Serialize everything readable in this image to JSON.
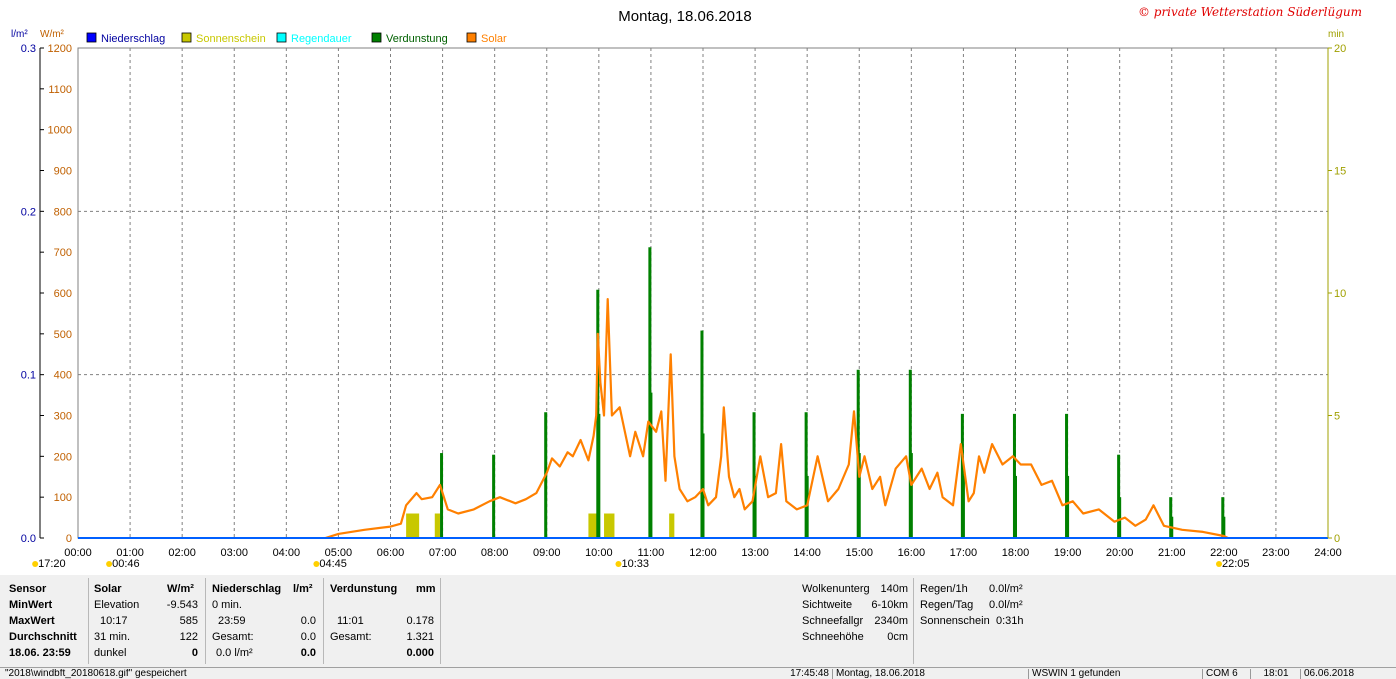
{
  "header": {
    "title": "Montag, 18.06.2018",
    "watermark": "© private Wetterstation Süderlügum",
    "left_unit_1": "l/m²",
    "left_unit_2": "W/m²",
    "right_unit": "min"
  },
  "legend": [
    {
      "label": "Niederschlag",
      "color": "#0000ff"
    },
    {
      "label": "Sonnenschein",
      "color": "#c8c800"
    },
    {
      "label": "Regendauer",
      "color": "#00ffff"
    },
    {
      "label": "Verdunstung",
      "color": "#008000"
    },
    {
      "label": "Solar",
      "color": "#ff8000"
    }
  ],
  "colors": {
    "solar": "#ff8000",
    "evaporation": "#008000",
    "sunshine": "#c8c800",
    "precip": "#0060ff",
    "grid": "#808080",
    "axis_left": "#0000a0",
    "axis_solar": "#c06000",
    "axis_right": "#a0a000"
  },
  "chart_data": {
    "type": "bar+line",
    "x_domain_hours": [
      0,
      24
    ],
    "x_ticks": [
      "00:00",
      "01:00",
      "02:00",
      "03:00",
      "04:00",
      "05:00",
      "06:00",
      "07:00",
      "08:00",
      "09:00",
      "10:00",
      "11:00",
      "12:00",
      "13:00",
      "14:00",
      "15:00",
      "16:00",
      "17:00",
      "18:00",
      "19:00",
      "20:00",
      "21:00",
      "22:00",
      "23:00",
      "24:00"
    ],
    "y_precip": {
      "unit": "l/m²",
      "range": [
        0,
        0.3
      ],
      "ticks": [
        "0.0",
        "0.1",
        "0.2",
        "0.3"
      ]
    },
    "y_solar": {
      "unit": "W/m²",
      "range": [
        0,
        1200
      ],
      "ticks": [
        "0",
        "100",
        "200",
        "300",
        "400",
        "500",
        "600",
        "700",
        "800",
        "900",
        "1000",
        "1100",
        "1200"
      ]
    },
    "y_minutes": {
      "unit": "min",
      "range": [
        0,
        20
      ],
      "ticks": [
        "0",
        "5",
        "10",
        "15",
        "20"
      ]
    },
    "solar_series": {
      "name": "Solar",
      "points": [
        [
          4.75,
          0
        ],
        [
          5.0,
          10
        ],
        [
          5.5,
          20
        ],
        [
          6.0,
          28
        ],
        [
          6.2,
          35
        ],
        [
          6.3,
          80
        ],
        [
          6.5,
          110
        ],
        [
          6.6,
          95
        ],
        [
          6.8,
          100
        ],
        [
          6.95,
          130
        ],
        [
          7.1,
          70
        ],
        [
          7.3,
          60
        ],
        [
          7.6,
          70
        ],
        [
          7.9,
          90
        ],
        [
          8.1,
          100
        ],
        [
          8.4,
          85
        ],
        [
          8.6,
          95
        ],
        [
          8.8,
          110
        ],
        [
          9.0,
          160
        ],
        [
          9.1,
          195
        ],
        [
          9.25,
          175
        ],
        [
          9.4,
          210
        ],
        [
          9.5,
          200
        ],
        [
          9.65,
          240
        ],
        [
          9.8,
          190
        ],
        [
          9.9,
          250
        ],
        [
          9.95,
          300
        ],
        [
          9.98,
          500
        ],
        [
          10.03,
          380
        ],
        [
          10.1,
          300
        ],
        [
          10.17,
          585
        ],
        [
          10.25,
          300
        ],
        [
          10.4,
          320
        ],
        [
          10.5,
          260
        ],
        [
          10.6,
          200
        ],
        [
          10.7,
          260
        ],
        [
          10.85,
          200
        ],
        [
          10.95,
          285
        ],
        [
          11.1,
          260
        ],
        [
          11.2,
          310
        ],
        [
          11.28,
          140
        ],
        [
          11.38,
          450
        ],
        [
          11.45,
          200
        ],
        [
          11.55,
          120
        ],
        [
          11.7,
          90
        ],
        [
          11.85,
          100
        ],
        [
          12.0,
          120
        ],
        [
          12.1,
          80
        ],
        [
          12.25,
          100
        ],
        [
          12.35,
          200
        ],
        [
          12.4,
          320
        ],
        [
          12.5,
          150
        ],
        [
          12.6,
          100
        ],
        [
          12.7,
          120
        ],
        [
          12.8,
          70
        ],
        [
          12.95,
          90
        ],
        [
          13.1,
          200
        ],
        [
          13.25,
          100
        ],
        [
          13.4,
          110
        ],
        [
          13.5,
          230
        ],
        [
          13.6,
          90
        ],
        [
          13.8,
          70
        ],
        [
          14.0,
          80
        ],
        [
          14.2,
          200
        ],
        [
          14.4,
          90
        ],
        [
          14.6,
          120
        ],
        [
          14.8,
          180
        ],
        [
          14.9,
          310
        ],
        [
          15.0,
          150
        ],
        [
          15.1,
          200
        ],
        [
          15.25,
          120
        ],
        [
          15.4,
          150
        ],
        [
          15.5,
          80
        ],
        [
          15.7,
          170
        ],
        [
          15.9,
          200
        ],
        [
          16.0,
          130
        ],
        [
          16.2,
          170
        ],
        [
          16.35,
          120
        ],
        [
          16.5,
          160
        ],
        [
          16.6,
          100
        ],
        [
          16.8,
          80
        ],
        [
          16.95,
          230
        ],
        [
          17.1,
          90
        ],
        [
          17.2,
          110
        ],
        [
          17.3,
          200
        ],
        [
          17.4,
          160
        ],
        [
          17.55,
          230
        ],
        [
          17.75,
          180
        ],
        [
          17.95,
          200
        ],
        [
          18.1,
          180
        ],
        [
          18.3,
          180
        ],
        [
          18.5,
          130
        ],
        [
          18.7,
          140
        ],
        [
          18.9,
          80
        ],
        [
          19.1,
          90
        ],
        [
          19.3,
          60
        ],
        [
          19.6,
          70
        ],
        [
          19.9,
          40
        ],
        [
          20.1,
          50
        ],
        [
          20.3,
          30
        ],
        [
          20.5,
          45
        ],
        [
          20.65,
          80
        ],
        [
          20.85,
          30
        ],
        [
          21.2,
          20
        ],
        [
          21.6,
          15
        ],
        [
          22.0,
          5
        ],
        [
          22.08,
          0
        ]
      ]
    },
    "evaporation_series": {
      "name": "Verdunstung",
      "hours": [
        6.98,
        7.98,
        8.98,
        9.98,
        10.0,
        10.98,
        11.0,
        11.98,
        12.0,
        12.98,
        13.0,
        13.98,
        14.0,
        14.98,
        15.0,
        15.98,
        16.0,
        16.98,
        17.0,
        17.98,
        18.0,
        18.98,
        19.0,
        19.98,
        20.0,
        20.98,
        21.0,
        21.98,
        22.0
      ],
      "values": [
        0.052,
        0.051,
        0.077,
        0.152,
        0.076,
        0.178,
        0.089,
        0.127,
        0.064,
        0.077,
        0.038,
        0.077,
        0.038,
        0.103,
        0.052,
        0.103,
        0.052,
        0.076,
        0.038,
        0.076,
        0.038,
        0.076,
        0.038,
        0.051,
        0.025,
        0.025,
        0.013,
        0.025,
        0.013
      ]
    },
    "sunshine_series": {
      "name": "Sonnenschein",
      "bars": [
        [
          6.3,
          6.55,
          1
        ],
        [
          6.85,
          6.95,
          1
        ],
        [
          9.8,
          10.0,
          1
        ],
        [
          10.1,
          10.3,
          1
        ],
        [
          11.35,
          11.45,
          1
        ]
      ]
    },
    "precipitation_series": {
      "name": "Niederschlag",
      "total": 0.0
    },
    "time_markers": [
      {
        "label": "17:20",
        "hour": -0.65,
        "row": 2
      },
      {
        "label": "00:46",
        "hour": 0.77,
        "row": 2
      },
      {
        "label": "04:45",
        "hour": 4.75,
        "row": 2
      },
      {
        "label": "10:33",
        "hour": 10.55,
        "row": 2
      },
      {
        "label": "22:05",
        "hour": 22.08,
        "row": 2
      }
    ]
  },
  "stats": {
    "row_labels": [
      "Sensor",
      "MinWert",
      "MaxWert",
      "Durchschnitt",
      "18.06. 23:59"
    ],
    "solar": {
      "header": "Solar",
      "unit": "W/m²",
      "rows": [
        [
          "Elevation",
          "-9.543"
        ],
        [
          "10:17",
          "585"
        ],
        [
          "31 min.",
          "122"
        ],
        [
          "dunkel",
          "0"
        ]
      ]
    },
    "precip": {
      "header": "Niederschlag",
      "unit": "l/m²",
      "rows": [
        [
          "0 min.",
          ""
        ],
        [
          "23:59",
          "0.0"
        ],
        [
          "Gesamt:",
          "0.0"
        ],
        [
          "0.0 l/m²",
          "0.0"
        ]
      ]
    },
    "evap": {
      "header": "Verdunstung",
      "unit": "mm",
      "rows": [
        [
          "",
          ""
        ],
        [
          "11:01",
          "0.178"
        ],
        [
          "Gesamt:",
          "1.321"
        ],
        [
          "",
          "0.000"
        ]
      ]
    },
    "extra_left": [
      [
        "Wolkenunterg",
        "140m"
      ],
      [
        "Sichtweite",
        "6-10km"
      ],
      [
        "Schneefallgr",
        "2340m"
      ],
      [
        "Schneehöhe",
        "0cm"
      ]
    ],
    "extra_right": [
      [
        "Regen/1h",
        "0.0l/m²"
      ],
      [
        "Regen/Tag",
        "0.0l/m²"
      ],
      [
        "Sonnenschein",
        "0:31h"
      ]
    ]
  },
  "statusbar": {
    "file": "\"2018\\windbft_20180618.gif\"  gespeichert",
    "time": "17:45:48",
    "date": "Montag, 18.06.2018",
    "found": "WSWIN 1 gefunden",
    "com": "COM 6",
    "clock": "18:01",
    "date2": "06.06.2018"
  }
}
